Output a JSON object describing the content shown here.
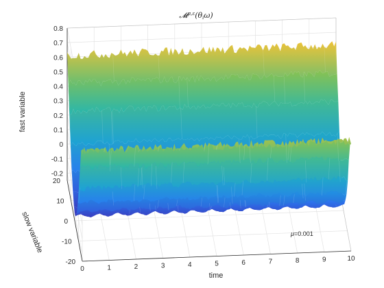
{
  "chart_data": {
    "type": "surface",
    "title": "𝓜^{μ,ε}(θᵢω)",
    "title_main": "𝓜",
    "title_sup": "μ,ε",
    "title_arg": "(θ",
    "title_arg_sub": "i",
    "title_arg_end": "ω)",
    "xlabel": "time",
    "ylabel": "slow variable",
    "zlabel": "fast variable",
    "xlim": [
      0,
      10
    ],
    "ylim": [
      -20,
      20
    ],
    "zlim": [
      -0.25,
      0.8
    ],
    "x_ticks": [
      "0",
      "1",
      "2",
      "3",
      "4",
      "5",
      "6",
      "7",
      "8",
      "9",
      "10"
    ],
    "y_ticks": [
      "-20",
      "-10",
      "0",
      "10",
      "20"
    ],
    "z_ticks": [
      "-0.2",
      "-0.1",
      "0",
      "0.1",
      "0.2",
      "0.3",
      "0.4",
      "0.5",
      "0.6",
      "0.7",
      "0.8"
    ],
    "surface_profile": {
      "slow": [
        -20,
        -17,
        -14,
        -11,
        -8,
        -5,
        -2,
        0,
        2,
        5,
        8,
        11,
        14,
        17,
        20
      ],
      "fast": [
        0.5,
        0.45,
        0.3,
        0.12,
        -0.02,
        -0.12,
        -0.19,
        -0.21,
        -0.19,
        -0.12,
        -0.02,
        0.12,
        0.3,
        0.45,
        0.6
      ]
    },
    "colormap": "parula",
    "annotation": {
      "symbol": "μ",
      "text": "=0.001"
    },
    "grid": true
  }
}
